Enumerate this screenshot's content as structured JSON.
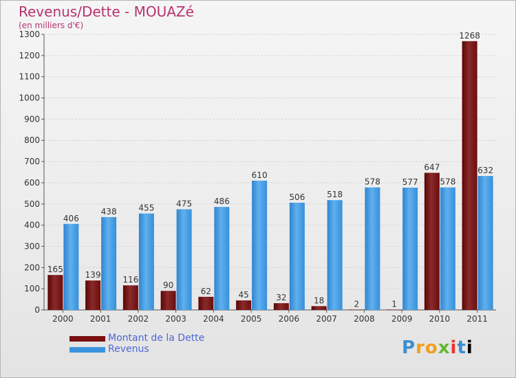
{
  "title": "Revenus/Dette - MOUAZé",
  "subtitle": "(en milliers d'€)",
  "logo_text": "Proxiti",
  "colors": {
    "dette": "#7a1010",
    "revenus": "#3a95de",
    "title": "#b8326f",
    "legend_text": "#4f66d6"
  },
  "chart_data": {
    "type": "bar",
    "categories": [
      "2000",
      "2001",
      "2002",
      "2003",
      "2004",
      "2005",
      "2006",
      "2007",
      "2008",
      "2009",
      "2010",
      "2011"
    ],
    "series": [
      {
        "name": "Montant de la Dette",
        "values": [
          165,
          139,
          116,
          90,
          62,
          45,
          32,
          18,
          2,
          1,
          647,
          1268
        ]
      },
      {
        "name": "Revenus",
        "values": [
          406,
          438,
          455,
          475,
          486,
          610,
          506,
          518,
          578,
          577,
          578,
          632
        ]
      }
    ],
    "ylim": [
      0,
      1300
    ],
    "yticks": [
      0,
      100,
      200,
      300,
      400,
      500,
      600,
      700,
      800,
      900,
      1000,
      1100,
      1200,
      1300
    ],
    "grid": true,
    "legend": "bottom-left"
  }
}
